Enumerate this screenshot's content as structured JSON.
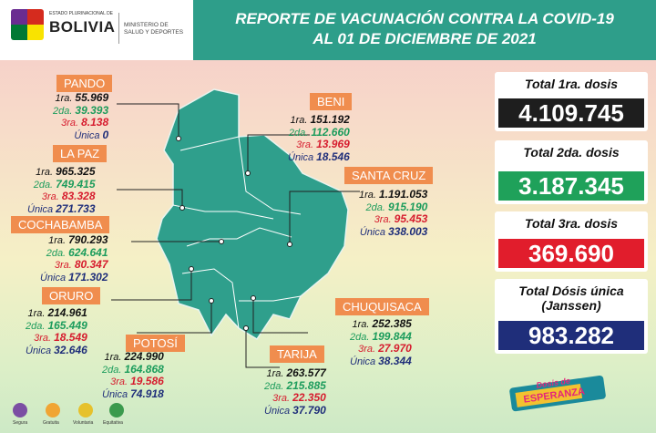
{
  "header": {
    "line1": "REPORTE DE VACUNACIÓN CONTRA LA COVID-19",
    "line2": "AL 01 DE DICIEMBRE DE 2021"
  },
  "logo": {
    "state": "ESTADO PLURINACIONAL DE",
    "country": "BOLIVIA",
    "ministry_line1": "MINISTERIO DE",
    "ministry_line2": "SALUD Y DEPORTES"
  },
  "labels": {
    "d1": "1ra.",
    "d2": "2da.",
    "d3": "3ra.",
    "du": "Única"
  },
  "departments": {
    "pando": {
      "name": "PANDO",
      "d1": "55.969",
      "d2": "39.393",
      "d3": "8.138",
      "du": "0"
    },
    "beni": {
      "name": "BENI",
      "d1": "151.192",
      "d2": "112.660",
      "d3": "13.969",
      "du": "18.546"
    },
    "la_paz": {
      "name": "LA PAZ",
      "d1": "965.325",
      "d2": "749.415",
      "d3": "83.328",
      "du": "271.733"
    },
    "santa_cruz": {
      "name": "SANTA CRUZ",
      "d1": "1.191.053",
      "d2": "915.190",
      "d3": "95.453",
      "du": "338.003"
    },
    "cochabamba": {
      "name": "COCHABAMBA",
      "d1": "790.293",
      "d2": "624.641",
      "d3": "80.347",
      "du": "171.302"
    },
    "oruro": {
      "name": "ORURO",
      "d1": "214.961",
      "d2": "165.449",
      "d3": "18.549",
      "du": "32.646"
    },
    "chuquisaca": {
      "name": "CHUQUISACA",
      "d1": "252.385",
      "d2": "199.844",
      "d3": "27.970",
      "du": "38.344"
    },
    "potosi": {
      "name": "POTOSÍ",
      "d1": "224.990",
      "d2": "164.868",
      "d3": "19.586",
      "du": "74.918"
    },
    "tarija": {
      "name": "TARIJA",
      "d1": "263.577",
      "d2": "215.885",
      "d3": "22.350",
      "du": "37.790"
    }
  },
  "totals": {
    "t1": {
      "title": "Total 1ra. dosis",
      "value": "4.109.745",
      "color": "#1e1e1e"
    },
    "t2": {
      "title": "Total 2da. dosis",
      "value": "3.187.345",
      "color": "#1fa15a"
    },
    "t3": {
      "title": "Total 3ra. dosis",
      "value": "369.690",
      "color": "#e11d2c"
    },
    "tu": {
      "title_line1": "Total Dósis única",
      "title_line2": "(Janssen)",
      "value": "983.282",
      "color": "#1f2e7a"
    }
  },
  "footer": {
    "items": [
      "Segura",
      "Gratuita",
      "Voluntaria",
      "Equitativa"
    ],
    "emblem_line1": "Dosis de",
    "emblem_line2": "ESPERANZA"
  }
}
